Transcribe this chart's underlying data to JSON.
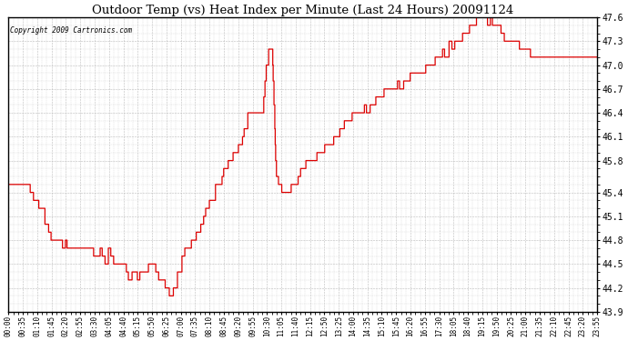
{
  "title": "Outdoor Temp (vs) Heat Index per Minute (Last 24 Hours) 20091124",
  "copyright": "Copyright 2009 Cartronics.com",
  "line_color": "#dd0000",
  "bg_color": "#ffffff",
  "grid_color": "#bbbbbb",
  "ylim": [
    43.9,
    47.6
  ],
  "yticks": [
    43.9,
    44.2,
    44.5,
    44.8,
    45.1,
    45.4,
    45.8,
    46.1,
    46.4,
    46.7,
    47.0,
    47.3,
    47.6
  ],
  "xtick_labels": [
    "00:00",
    "00:35",
    "01:10",
    "01:45",
    "02:20",
    "02:55",
    "03:30",
    "04:05",
    "04:40",
    "05:15",
    "05:50",
    "06:25",
    "07:00",
    "07:35",
    "08:10",
    "08:45",
    "09:20",
    "09:55",
    "10:30",
    "11:05",
    "11:40",
    "12:15",
    "12:50",
    "13:25",
    "14:00",
    "14:35",
    "15:10",
    "15:45",
    "16:20",
    "16:55",
    "17:30",
    "18:05",
    "18:40",
    "19:15",
    "19:50",
    "20:25",
    "21:00",
    "21:35",
    "22:10",
    "22:45",
    "23:20",
    "23:55"
  ],
  "n_points": 1440,
  "ctrl_times": [
    0.0,
    0.01,
    0.02,
    0.03,
    0.04,
    0.055,
    0.07,
    0.08,
    0.095,
    0.11,
    0.12,
    0.13,
    0.14,
    0.15,
    0.157,
    0.163,
    0.17,
    0.178,
    0.19,
    0.2,
    0.21,
    0.22,
    0.23,
    0.238,
    0.245,
    0.252,
    0.26,
    0.267,
    0.275,
    0.283,
    0.293,
    0.305,
    0.318,
    0.33,
    0.345,
    0.36,
    0.378,
    0.395,
    0.412,
    0.425,
    0.432,
    0.438,
    0.443,
    0.448,
    0.455,
    0.462,
    0.468,
    0.475,
    0.483,
    0.492,
    0.502,
    0.512,
    0.522,
    0.535,
    0.548,
    0.562,
    0.578,
    0.595,
    0.612,
    0.632,
    0.652,
    0.672,
    0.692,
    0.712,
    0.732,
    0.752,
    0.77,
    0.785,
    0.797,
    0.808,
    0.818,
    0.828,
    0.838,
    0.848,
    0.858,
    0.868,
    0.88,
    0.895,
    0.91,
    0.925,
    0.94,
    0.955,
    0.97,
    0.985,
    1.0
  ],
  "ctrl_vals": [
    45.5,
    45.55,
    45.5,
    45.45,
    45.35,
    45.15,
    44.9,
    44.78,
    44.72,
    44.68,
    44.72,
    44.65,
    44.7,
    44.58,
    44.68,
    44.58,
    44.65,
    44.55,
    44.5,
    44.42,
    44.38,
    44.35,
    44.42,
    44.52,
    44.48,
    44.35,
    44.25,
    44.18,
    44.1,
    44.2,
    44.55,
    44.72,
    44.88,
    45.1,
    45.3,
    45.55,
    45.8,
    46.05,
    46.42,
    46.48,
    46.42,
    47.0,
    47.2,
    47.22,
    45.55,
    45.48,
    45.38,
    45.42,
    45.52,
    45.62,
    45.72,
    45.78,
    45.85,
    45.92,
    46.05,
    46.18,
    46.3,
    46.42,
    46.52,
    46.62,
    46.7,
    46.8,
    46.9,
    47.0,
    47.1,
    47.22,
    47.35,
    47.48,
    47.58,
    47.6,
    47.55,
    47.45,
    47.38,
    47.32,
    47.3,
    47.22,
    47.18,
    47.12,
    47.08,
    47.15,
    47.1,
    47.05,
    47.12,
    47.08,
    47.1
  ]
}
